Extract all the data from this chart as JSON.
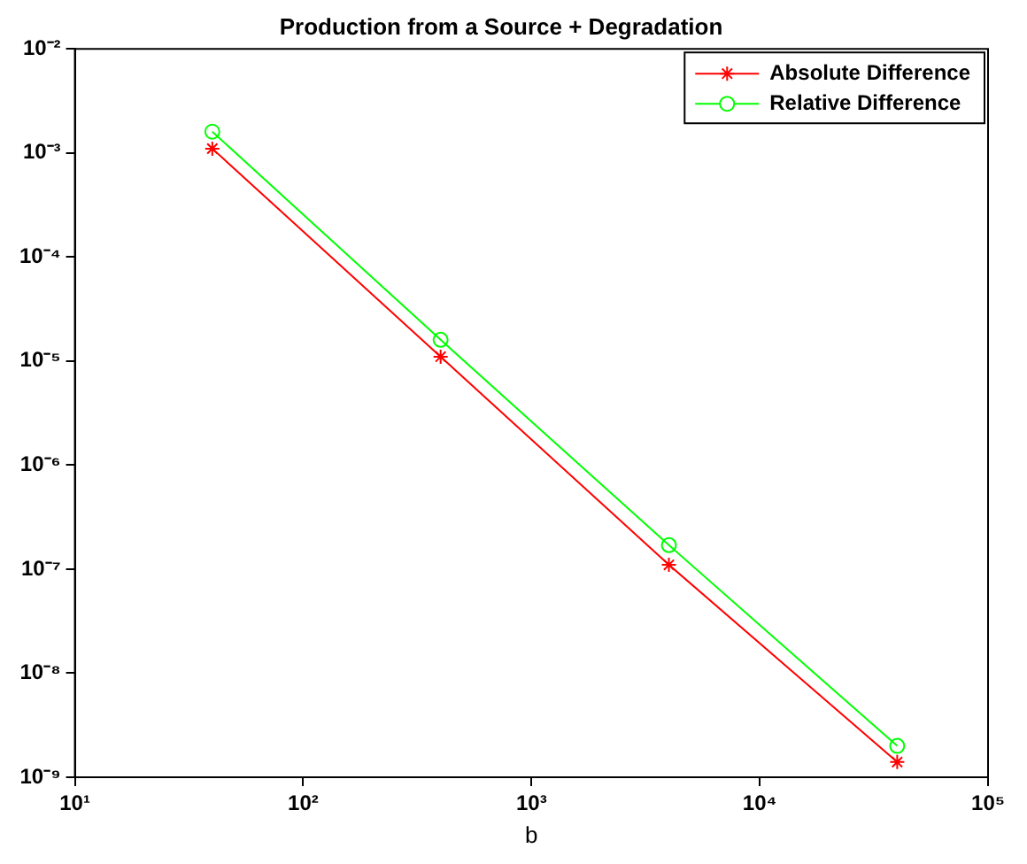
{
  "chart_data": {
    "type": "line",
    "title": "Production from a Source + Degradation",
    "xlabel": "b",
    "log": "xy",
    "x": [
      40,
      400,
      4000,
      40000
    ],
    "series": [
      {
        "name": "Absolute Difference",
        "color": "#ff0000",
        "marker": "cross",
        "values": [
          0.0011,
          1.1e-05,
          1.1e-07,
          1.4e-09
        ]
      },
      {
        "name": "Relative Difference",
        "color": "#00ff00",
        "marker": "circle",
        "values": [
          0.0016,
          1.6e-05,
          1.7e-07,
          2e-09
        ]
      }
    ],
    "xlim": [
      10,
      100000
    ],
    "xticks": [
      {
        "value": 10,
        "label": "10¹"
      },
      {
        "value": 100,
        "label": "10²"
      },
      {
        "value": 1000,
        "label": "10³"
      },
      {
        "value": 10000,
        "label": "10⁴"
      },
      {
        "value": 100000,
        "label": "10⁵"
      }
    ],
    "ylim": [
      1e-09,
      0.01
    ],
    "yticks": [
      {
        "value": 1e-09,
        "label": "10⁻⁹"
      },
      {
        "value": 1e-08,
        "label": "10⁻⁸"
      },
      {
        "value": 1e-07,
        "label": "10⁻⁷"
      },
      {
        "value": 1e-06,
        "label": "10⁻⁶"
      },
      {
        "value": 1e-05,
        "label": "10⁻⁵"
      },
      {
        "value": 0.0001,
        "label": "10⁻⁴"
      },
      {
        "value": 0.001,
        "label": "10⁻³"
      },
      {
        "value": 0.01,
        "label": "10⁻²"
      }
    ],
    "grid": false,
    "legend": "top right",
    "line_style": "solid"
  }
}
